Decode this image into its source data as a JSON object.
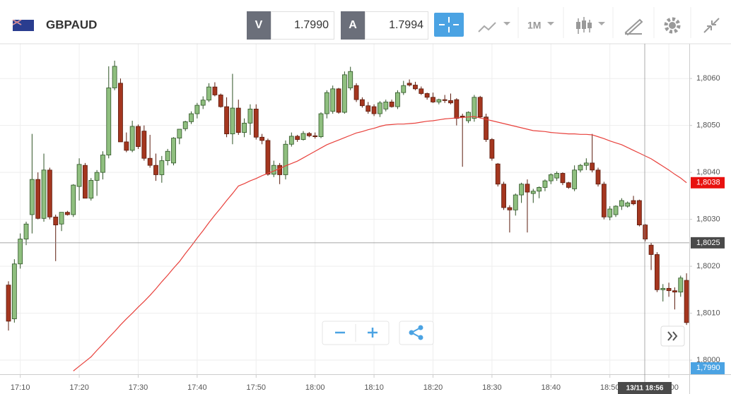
{
  "toolbar": {
    "symbol": "GBPAUD",
    "sell_label": "V",
    "sell_price": "1.7990",
    "buy_label": "A",
    "buy_price": "1.7994",
    "timeframe": "1M"
  },
  "crosshair": {
    "price": 1.8025,
    "price_label": "1,8025",
    "time_label": "13/11 18:56"
  },
  "bid_line": {
    "value": 1.799,
    "label": "1,7990"
  },
  "chart_data": {
    "type": "candlestick",
    "categories": [
      null,
      null,
      "17:10",
      null,
      null,
      null,
      null,
      null,
      null,
      null,
      null,
      null,
      "17:20",
      null,
      null,
      null,
      null,
      null,
      null,
      null,
      null,
      null,
      "17:30",
      null,
      null,
      null,
      null,
      null,
      null,
      null,
      null,
      null,
      "17:40",
      null,
      null,
      null,
      null,
      null,
      null,
      null,
      null,
      null,
      "17:50",
      null,
      null,
      null,
      null,
      null,
      null,
      null,
      null,
      null,
      "18:00",
      null,
      null,
      null,
      null,
      null,
      null,
      null,
      null,
      null,
      "18:10",
      null,
      null,
      null,
      null,
      null,
      null,
      null,
      null,
      null,
      "18:20",
      null,
      null,
      null,
      null,
      null,
      null,
      null,
      null,
      null,
      "18:30",
      null,
      null,
      null,
      null,
      null,
      null,
      null,
      null,
      null,
      "18:40",
      null,
      null,
      null,
      null,
      null,
      null,
      null,
      null,
      null,
      "18:50",
      null,
      null,
      null,
      null,
      null,
      null,
      null,
      null,
      null,
      "19:00",
      null,
      null,
      null
    ],
    "open": [
      1.8016,
      1.80088,
      1.80205,
      1.80258,
      1.8031,
      1.80385,
      1.80302,
      1.80405,
      1.80305,
      1.8029,
      1.80315,
      1.8031,
      1.8037,
      1.80415,
      1.80345,
      1.80383,
      1.804,
      1.80437,
      1.8058,
      1.8059,
      1.80465,
      1.80447,
      1.80498,
      1.80488,
      1.8043,
      1.80415,
      1.80395,
      1.80425,
      1.8042,
      1.80473,
      1.80493,
      1.80508,
      1.80525,
      1.80543,
      1.80554,
      1.80582,
      1.80565,
      1.8054,
      1.80482,
      1.80537,
      1.80485,
      1.80505,
      1.80535,
      1.80475,
      1.80468,
      1.80396,
      1.80415,
      1.80395,
      1.8046,
      1.80477,
      1.8047,
      1.80483,
      1.80478,
      1.80476,
      1.80525,
      1.8053,
      1.80578,
      1.80528,
      1.8058,
      1.80585,
      1.80555,
      1.80542,
      1.8054,
      1.80525,
      1.80535,
      1.8055,
      1.8054,
      1.8057,
      1.8059,
      1.80586,
      1.80578,
      1.80568,
      1.8056,
      1.8055,
      1.80555,
      1.80553,
      1.80555,
      1.8052,
      1.8051,
      1.80515,
      1.8056,
      1.80518,
      1.8047,
      1.80418,
      1.80375,
      1.80325,
      1.8032,
      1.80352,
      1.80375,
      1.80355,
      1.8036,
      1.80368,
      1.80382,
      1.80388,
      1.80398,
      1.80378,
      1.80365,
      1.80405,
      1.80415,
      1.8042,
      1.80405,
      1.80375,
      1.80305,
      1.8031,
      1.80328,
      1.80328,
      1.8034,
      1.8034,
      1.80288,
      1.80245,
      1.80225,
      1.8015,
      1.80153,
      1.80148,
      1.80145,
      1.8017
    ],
    "high": [
      1.80168,
      1.80215,
      1.8027,
      1.80295,
      1.80482,
      1.804,
      1.8044,
      1.8041,
      1.8031,
      1.80315,
      1.80318,
      1.80375,
      1.8043,
      1.8042,
      1.80388,
      1.80405,
      1.80445,
      1.80626,
      1.80638,
      1.806,
      1.80485,
      1.8051,
      1.80502,
      1.805,
      1.8048,
      1.8044,
      1.80435,
      1.8045,
      1.80475,
      1.8049,
      1.8051,
      1.8053,
      1.80548,
      1.80562,
      1.8059,
      1.80592,
      1.80568,
      1.8056,
      1.8061,
      1.80555,
      1.80515,
      1.80545,
      1.80545,
      1.80482,
      1.80472,
      1.80425,
      1.8042,
      1.80468,
      1.80485,
      1.8048,
      1.80488,
      1.80486,
      1.80485,
      1.80528,
      1.80575,
      1.80585,
      1.8058,
      1.80615,
      1.80625,
      1.8059,
      1.8056,
      1.8055,
      1.80545,
      1.80552,
      1.80555,
      1.80555,
      1.80575,
      1.80595,
      1.80598,
      1.80593,
      1.80583,
      1.8057,
      1.8057,
      1.80557,
      1.80565,
      1.80568,
      1.80558,
      1.80525,
      1.8053,
      1.80565,
      1.80563,
      1.80525,
      1.80473,
      1.8042,
      1.8038,
      1.8033,
      1.80355,
      1.80378,
      1.80385,
      1.80365,
      1.8037,
      1.80385,
      1.80398,
      1.80402,
      1.804,
      1.8038,
      1.80415,
      1.80418,
      1.8043,
      1.80482,
      1.8041,
      1.8038,
      1.80328,
      1.8033,
      1.80345,
      1.80338,
      1.8035,
      1.80342,
      1.8029,
      1.8025,
      1.8023,
      1.80162,
      1.80165,
      1.80155,
      1.8018,
      1.80185
    ],
    "low": [
      1.80063,
      1.8008,
      1.80195,
      1.80245,
      1.8027,
      1.803,
      1.80295,
      1.803,
      1.80211,
      1.80275,
      1.80308,
      1.80305,
      1.8034,
      1.80345,
      1.8034,
      1.8035,
      1.80385,
      1.8043,
      1.80575,
      1.80465,
      1.80443,
      1.80443,
      1.8045,
      1.80425,
      1.8041,
      1.80382,
      1.80378,
      1.80415,
      1.80415,
      1.8046,
      1.80488,
      1.80503,
      1.80515,
      1.80535,
      1.8055,
      1.80562,
      1.80538,
      1.80475,
      1.8046,
      1.8048,
      1.80475,
      1.8048,
      1.8047,
      1.8046,
      1.80393,
      1.8039,
      1.80375,
      1.80385,
      1.80455,
      1.80465,
      1.80468,
      1.80475,
      1.80472,
      1.80473,
      1.80515,
      1.80525,
      1.80525,
      1.80525,
      1.80575,
      1.8055,
      1.80538,
      1.80525,
      1.8052,
      1.80518,
      1.8053,
      1.80538,
      1.80535,
      1.80565,
      1.80583,
      1.80575,
      1.80565,
      1.80555,
      1.80548,
      1.80545,
      1.80548,
      1.80545,
      1.805,
      1.80412,
      1.80505,
      1.80508,
      1.80515,
      1.80465,
      1.80425,
      1.8037,
      1.8032,
      1.80272,
      1.80308,
      1.80335,
      1.80272,
      1.80335,
      1.80345,
      1.8036,
      1.80375,
      1.80382,
      1.80373,
      1.80365,
      1.8036,
      1.804,
      1.80405,
      1.804,
      1.8037,
      1.803,
      1.80298,
      1.80305,
      1.8032,
      1.80325,
      1.8033,
      1.80285,
      1.80253,
      1.80192,
      1.80145,
      1.80125,
      1.80135,
      1.80108,
      1.80135,
      1.80075
    ],
    "close": [
      1.80083,
      1.80205,
      1.80258,
      1.8029,
      1.80385,
      1.80302,
      1.80405,
      1.80305,
      1.80288,
      1.80315,
      1.8031,
      1.80373,
      1.80417,
      1.80345,
      1.80383,
      1.804,
      1.80437,
      1.8058,
      1.80626,
      1.80465,
      1.80447,
      1.80498,
      1.80455,
      1.8043,
      1.80415,
      1.80395,
      1.80425,
      1.80445,
      1.80473,
      1.80492,
      1.80508,
      1.80525,
      1.80543,
      1.80554,
      1.80582,
      1.80565,
      1.8054,
      1.80482,
      1.80537,
      1.80485,
      1.80505,
      1.80535,
      1.80475,
      1.80468,
      1.80396,
      1.80415,
      1.80395,
      1.8046,
      1.80477,
      1.8047,
      1.80483,
      1.80478,
      1.80476,
      1.80525,
      1.8057,
      1.80578,
      1.80528,
      1.80608,
      1.80615,
      1.80555,
      1.80542,
      1.8053,
      1.80525,
      1.80548,
      1.8055,
      1.8054,
      1.8057,
      1.80585,
      1.80586,
      1.80578,
      1.80568,
      1.8056,
      1.8055,
      1.80555,
      1.80553,
      1.80548,
      1.80515,
      1.80518,
      1.80528,
      1.8056,
      1.80518,
      1.8047,
      1.8043,
      1.80375,
      1.80325,
      1.8032,
      1.80352,
      1.80375,
      1.80358,
      1.8036,
      1.80368,
      1.80382,
      1.80395,
      1.80398,
      1.80378,
      1.80368,
      1.80405,
      1.80415,
      1.8042,
      1.80405,
      1.80375,
      1.80305,
      1.80322,
      1.80328,
      1.8034,
      1.80335,
      1.80333,
      1.80288,
      1.80258,
      1.80225,
      1.8015,
      1.80153,
      1.80148,
      1.80145,
      1.80175,
      1.8008
    ],
    "up_color": "#8fbf7f",
    "down_color": "#a4361f",
    "overlay": {
      "color": "#e8413c",
      "value_label": "1,8038",
      "values": [
        null,
        null,
        null,
        null,
        null,
        null,
        null,
        null,
        null,
        null,
        null,
        1.79977,
        1.79987,
        1.79997,
        1.80007,
        1.80021,
        1.80034,
        1.80048,
        1.80061,
        1.80075,
        1.80088,
        1.801,
        1.80113,
        1.80125,
        1.80138,
        1.80152,
        1.80167,
        1.80181,
        1.80196,
        1.8021,
        1.80227,
        1.80243,
        1.8026,
        1.80276,
        1.80293,
        1.80309,
        1.80324,
        1.8034,
        1.80355,
        1.80371,
        1.80376,
        1.80382,
        1.80387,
        1.80393,
        1.80398,
        1.80403,
        1.80408,
        1.80414,
        1.80419,
        1.80424,
        1.80431,
        1.80438,
        1.80445,
        1.80452,
        1.80459,
        1.80464,
        1.80469,
        1.80474,
        1.80479,
        1.80484,
        1.80487,
        1.80491,
        1.80494,
        1.80498,
        1.80501,
        1.80502,
        1.80503,
        1.80503,
        1.80504,
        1.80505,
        1.80507,
        1.80509,
        1.8051,
        1.80512,
        1.80514,
        1.80515,
        1.80516,
        1.80517,
        1.80518,
        1.80519,
        1.80516,
        1.80513,
        1.8051,
        1.80507,
        1.80504,
        1.80501,
        1.80498,
        1.80495,
        1.80492,
        1.80489,
        1.80488,
        1.80487,
        1.80485,
        1.80484,
        1.80483,
        1.80482,
        1.80482,
        1.80481,
        1.80481,
        1.8048,
        1.80476,
        1.80472,
        1.80467,
        1.80463,
        1.80459,
        1.80453,
        1.80447,
        1.80441,
        1.80435,
        1.80429,
        1.80421,
        1.80413,
        1.80405,
        1.80396,
        1.80388,
        1.80378
      ]
    },
    "ylim": [
      1.7997,
      1.80674
    ],
    "yticks": [
      {
        "value": 1.8,
        "label": "1,8000"
      },
      {
        "value": 1.801,
        "label": "1,8010"
      },
      {
        "value": 1.802,
        "label": "1,8020"
      },
      {
        "value": 1.803,
        "label": "1,8030"
      },
      {
        "value": 1.804,
        "label": "1,8040"
      },
      {
        "value": 1.805,
        "label": "1,8050"
      },
      {
        "value": 1.806,
        "label": "1,8060"
      }
    ],
    "grid": true
  }
}
